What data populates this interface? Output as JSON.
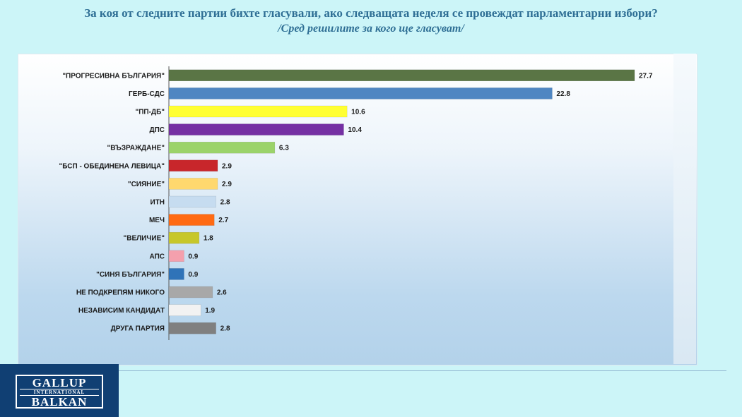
{
  "header": {
    "title": "За коя от следните партии бихте  гласували,  ако следващата неделя се провеждат парламентарни избори?",
    "subtitle": "/Сред решилите за кого ще гласуват/"
  },
  "logo": {
    "line1": "GALLUP",
    "line2": "INTERNATIONAL",
    "line3": "BALKAN"
  },
  "chart_data": {
    "type": "bar",
    "orientation": "horizontal",
    "categories": [
      "\"ПРОГРЕСИВНА БЪЛГАРИЯ\"",
      "ГЕРБ-СДС",
      "\"ПП-ДБ\"",
      "ДПС",
      "\"ВЪЗРАЖДАНЕ\"",
      "\"БСП - ОБЕДИНЕНА ЛЕВИЦА\"",
      "\"СИЯНИЕ\"",
      "ИТН",
      "МЕЧ",
      "\"ВЕЛИЧИЕ\"",
      "АПС",
      "\"СИНЯ БЪЛГАРИЯ\"",
      "НЕ ПОДКРЕПЯМ НИКОГО",
      "НЕЗАВИСИМ КАНДИДАТ",
      "ДРУГА ПАРТИЯ"
    ],
    "values": [
      27.7,
      22.8,
      10.6,
      10.4,
      6.3,
      2.9,
      2.9,
      2.8,
      2.7,
      1.8,
      0.9,
      0.9,
      2.6,
      1.9,
      2.8
    ],
    "value_labels": [
      "27.7",
      "22.8",
      "10.6",
      "10.4",
      "6.3",
      "2.9",
      "2.9",
      "2.8",
      "2.7",
      "1.8",
      "0.9",
      "0.9",
      "2.6",
      "1.9",
      "2.8"
    ],
    "colors": [
      "#5a7545",
      "#4f86c2",
      "#ffff33",
      "#7530a3",
      "#9bd36a",
      "#c8262b",
      "#ffd86e",
      "#c6dcf0",
      "#ff6a13",
      "#c7c72a",
      "#f4a0ad",
      "#2f73b8",
      "#a8a8a8",
      "#f2f2f2",
      "#808080"
    ],
    "xlim": [
      0,
      27.7
    ],
    "grid": false,
    "legend": "none"
  }
}
